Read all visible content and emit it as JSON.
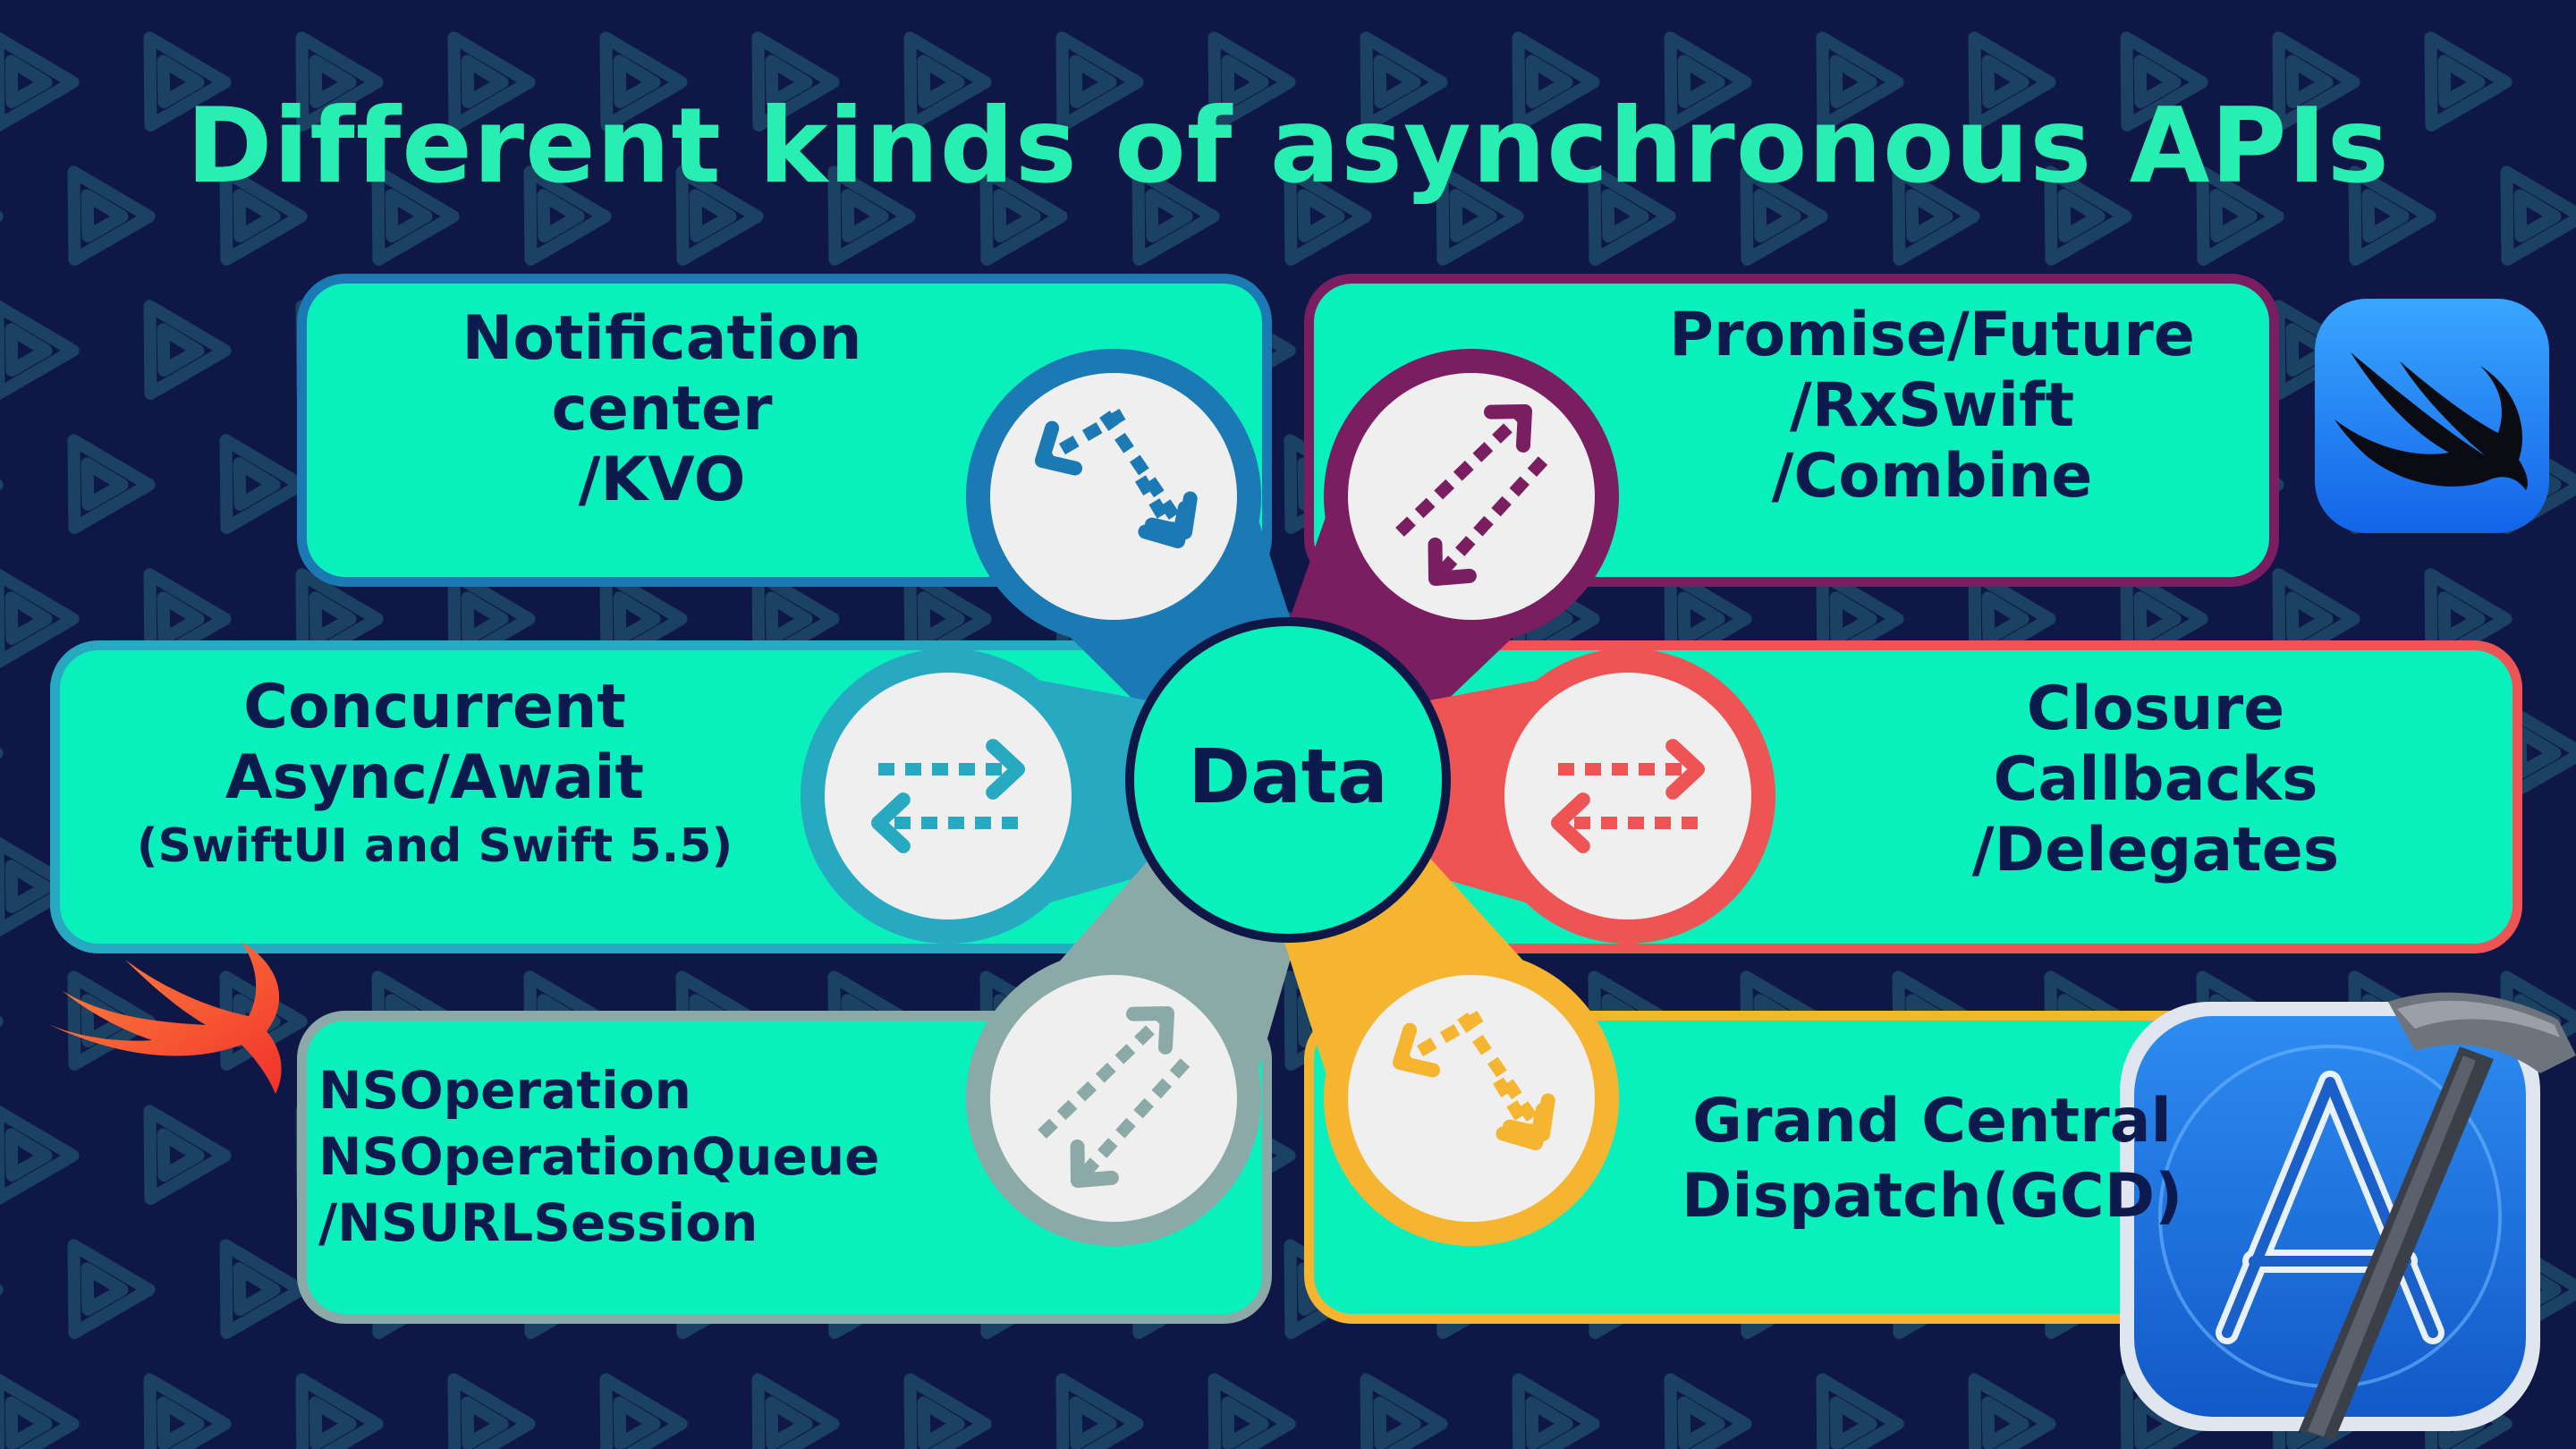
{
  "title": "Different kinds of asynchronous APIs",
  "center_label": "Data",
  "colors": {
    "background": "#0f1747",
    "pattern": "#1d4a68",
    "title": "#27efb2",
    "card_fill": "#0af0bd",
    "label_text": "#0d1a4d",
    "circle_fill": "#efefef"
  },
  "cards": {
    "notification": {
      "lines": [
        "Notification",
        "center",
        "/KVO"
      ],
      "color": "#1b79b3",
      "icon": "diagonal-arrows-icon"
    },
    "promise": {
      "lines": [
        "Promise/Future",
        "/RxSwift",
        "/Combine"
      ],
      "color": "#7a1e61",
      "icon": "diagonal-arrows-icon"
    },
    "concurrent": {
      "lines": [
        "Concurrent",
        "Async/Await",
        "(SwiftUI and Swift 5.5)"
      ],
      "color": "#27a9c2",
      "icon": "horizontal-arrows-icon"
    },
    "closure": {
      "lines": [
        "Closure",
        "Callbacks",
        "/Delegates"
      ],
      "color": "#ef5455",
      "icon": "horizontal-arrows-icon"
    },
    "nsoperation": {
      "lines": [
        "NSOperation",
        "NSOperationQueue",
        "/NSURLSession"
      ],
      "color": "#8aa9a7",
      "icon": "diagonal-arrows-icon"
    },
    "gcd": {
      "lines": [
        "Grand Central",
        "Dispatch(GCD)"
      ],
      "color": "#f6b531",
      "icon": "diagonal-arrows-icon"
    }
  },
  "logos": [
    "swiftui-logo",
    "swift-logo",
    "xcode-logo"
  ]
}
